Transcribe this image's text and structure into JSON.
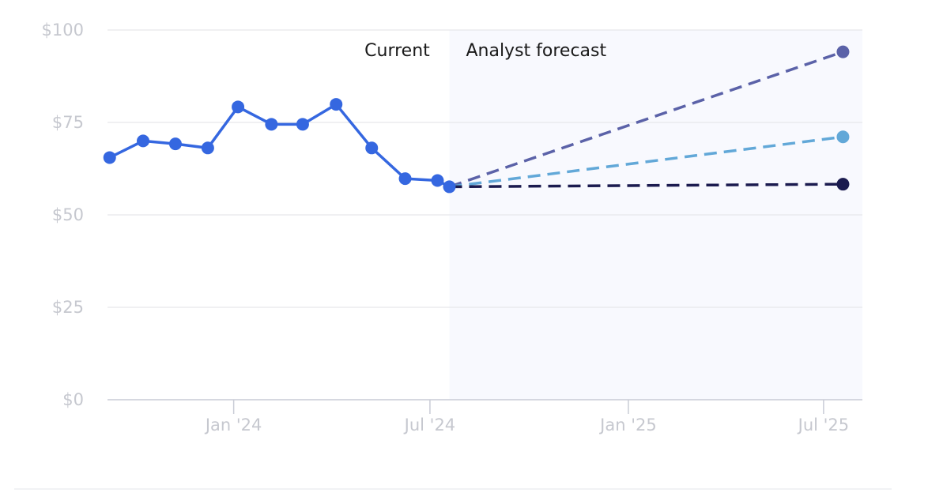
{
  "chart_data": {
    "type": "line",
    "title": "",
    "xlabel": "",
    "ylabel": "",
    "ylim": [
      0,
      100
    ],
    "xlim": [
      "2023-09-06",
      "2025-08-06"
    ],
    "y_ticks": [
      {
        "value": 0,
        "label": "$0"
      },
      {
        "value": 25,
        "label": "$25"
      },
      {
        "value": 50,
        "label": "$50"
      },
      {
        "value": 75,
        "label": "$75"
      },
      {
        "value": 100,
        "label": "$100"
      }
    ],
    "x_ticks": [
      {
        "date": "2024-01-01",
        "label": "Jan '24"
      },
      {
        "date": "2024-07-01",
        "label": "Jul '24"
      },
      {
        "date": "2025-01-01",
        "label": "Jan '25"
      },
      {
        "date": "2025-07-01",
        "label": "Jul '25"
      }
    ],
    "grid": true,
    "region_labels": {
      "current": "Current",
      "forecast": "Analyst forecast"
    },
    "forecast_start": "2024-07-19",
    "series": [
      {
        "kind": "history",
        "color": "#3567e0",
        "dashed": false,
        "points": [
          {
            "x": "2023-09-08",
            "y": 65.5
          },
          {
            "x": "2023-10-09",
            "y": 70.0
          },
          {
            "x": "2023-11-08",
            "y": 69.2
          },
          {
            "x": "2023-12-08",
            "y": 68.1
          },
          {
            "x": "2024-01-05",
            "y": 79.2
          },
          {
            "x": "2024-02-05",
            "y": 74.5
          },
          {
            "x": "2024-03-05",
            "y": 74.5
          },
          {
            "x": "2024-04-05",
            "y": 79.9
          },
          {
            "x": "2024-05-08",
            "y": 68.1
          },
          {
            "x": "2024-06-08",
            "y": 59.8
          },
          {
            "x": "2024-07-08",
            "y": 59.3
          },
          {
            "x": "2024-07-19",
            "y": 57.6
          }
        ]
      },
      {
        "kind": "forecast",
        "color": "#5b62a8",
        "dashed": true,
        "points": [
          {
            "x": "2024-07-19",
            "y": 57.6
          },
          {
            "x": "2025-07-19",
            "y": 94.1
          }
        ]
      },
      {
        "kind": "forecast",
        "color": "#62a8d8",
        "dashed": true,
        "points": [
          {
            "x": "2024-07-19",
            "y": 57.6
          },
          {
            "x": "2025-07-19",
            "y": 71.1
          }
        ]
      },
      {
        "kind": "forecast",
        "color": "#1b1b4f",
        "dashed": true,
        "points": [
          {
            "x": "2024-07-19",
            "y": 57.6
          },
          {
            "x": "2025-07-19",
            "y": 58.3
          }
        ]
      }
    ],
    "colors": {
      "grid": "#e6e7eb",
      "axis": "#c9ccd6",
      "tick_text": "#c6c8cf",
      "forecast_band": "#f8f9fe"
    }
  }
}
